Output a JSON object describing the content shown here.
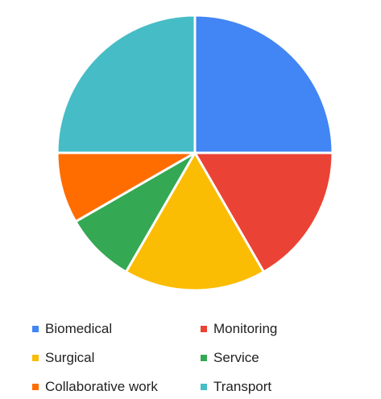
{
  "chart_data": {
    "type": "pie",
    "title": "",
    "slices": [
      {
        "label": "Biomedical",
        "value": 25,
        "color": "#4285F4"
      },
      {
        "label": "Monitoring",
        "value": 16.67,
        "color": "#EA4335"
      },
      {
        "label": "Surgical",
        "value": 16.67,
        "color": "#FBBC04"
      },
      {
        "label": "Service",
        "value": 8.33,
        "color": "#34A853"
      },
      {
        "label": "Collaborative work",
        "value": 8.33,
        "color": "#FF6D01"
      },
      {
        "label": "Transport",
        "value": 25,
        "color": "#46BDC6"
      }
    ],
    "legend_position": "bottom",
    "legend_columns": 2
  }
}
